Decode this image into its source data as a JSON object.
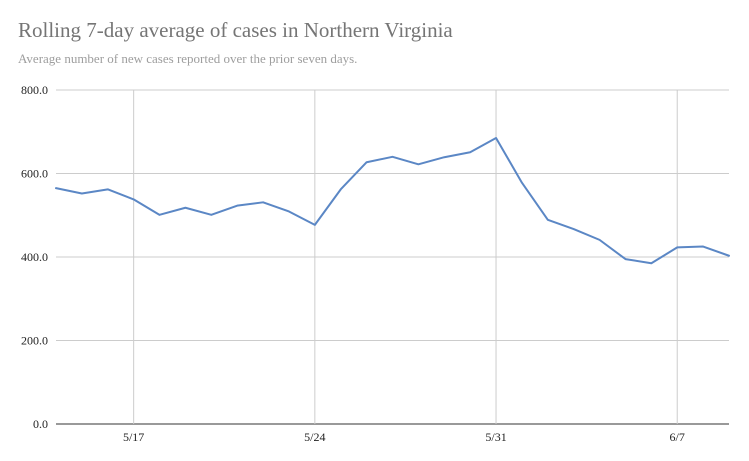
{
  "chart_data": {
    "type": "line",
    "title": "Rolling 7-day average of cases in Northern Virginia",
    "subtitle": "Average number of new cases reported over the prior seven days.",
    "xlabel": "",
    "ylabel": "",
    "ylim": [
      0,
      800
    ],
    "yticks": [
      "0.0",
      "200.0",
      "400.0",
      "600.0",
      "800.0"
    ],
    "xticks": [
      "5/17",
      "5/24",
      "5/31",
      "6/7"
    ],
    "x": [
      "5/14",
      "5/15",
      "5/16",
      "5/17",
      "5/18",
      "5/19",
      "5/20",
      "5/21",
      "5/22",
      "5/23",
      "5/24",
      "5/25",
      "5/26",
      "5/27",
      "5/28",
      "5/29",
      "5/30",
      "5/31",
      "6/1",
      "6/2",
      "6/3",
      "6/4",
      "6/5",
      "6/6",
      "6/7",
      "6/8",
      "6/9"
    ],
    "series": [
      {
        "values": [
          565,
          552,
          562,
          538,
          501,
          518,
          501,
          523,
          531,
          509,
          477,
          562,
          627,
          640,
          622,
          639,
          651,
          685,
          578,
          489,
          467,
          441,
          395,
          385,
          423,
          425,
          403
        ]
      }
    ],
    "grid": true,
    "legend": "none",
    "colors": {
      "line": "#5b87c5",
      "grid": "#cccccc",
      "baseline": "#333333"
    }
  }
}
